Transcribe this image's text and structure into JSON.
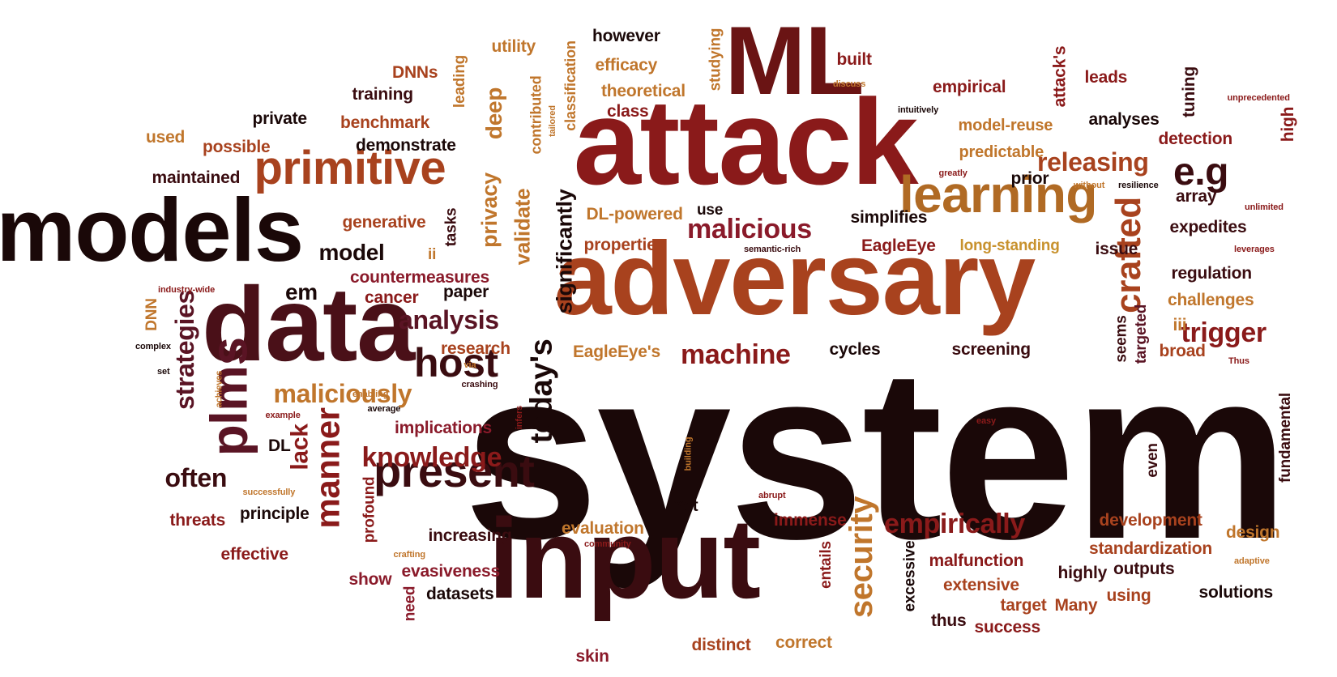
{
  "palette": {
    "background": "#ffffff",
    "darkest": "#1a0808",
    "maroon": "#3a0c10",
    "plum": "#5a1424",
    "crimson": "#8a1a1a",
    "rust": "#a8421e",
    "amber": "#c0762c",
    "gold": "#c8922e"
  },
  "words": [
    {
      "text": "system",
      "color": "#1a0808"
    },
    {
      "text": "adversary",
      "color": "#a8421e"
    },
    {
      "text": "attack",
      "color": "#8a1a1a"
    },
    {
      "text": "input",
      "color": "#3a0c10"
    },
    {
      "text": "data",
      "color": "#4a1018"
    },
    {
      "text": "models",
      "color": "#1a0808"
    },
    {
      "text": "ML",
      "color": "#6a1414"
    },
    {
      "text": "learning",
      "color": "#b06a24"
    },
    {
      "text": "primitive",
      "color": "#a8421e"
    },
    {
      "text": "present",
      "color": "#3a0c10"
    },
    {
      "text": "plms",
      "color": "#5a1424"
    },
    {
      "text": "host",
      "color": "#3a0c10"
    },
    {
      "text": "malicious",
      "color": "#8a1a2a"
    },
    {
      "text": "crafted",
      "color": "#a8421e"
    },
    {
      "text": "security",
      "color": "#c0762c"
    },
    {
      "text": "today's",
      "color": "#1a0808"
    },
    {
      "text": "manner",
      "color": "#8a1a1a"
    },
    {
      "text": "strategies",
      "color": "#5a1424"
    },
    {
      "text": "releasing",
      "color": "#a8421e"
    },
    {
      "text": "e.g",
      "color": "#3a0c10"
    },
    {
      "text": "machine",
      "color": "#8a1a1a"
    },
    {
      "text": "empirically",
      "color": "#8a1a1a"
    },
    {
      "text": "knowledge",
      "color": "#8a1a1a"
    },
    {
      "text": "maliciously",
      "color": "#c0762c"
    },
    {
      "text": "trigger",
      "color": "#8a1a1a"
    },
    {
      "text": "analysis",
      "color": "#5a1424"
    },
    {
      "text": "significantly",
      "color": "#1a0808"
    },
    {
      "text": "often",
      "color": "#3a0c10"
    },
    {
      "text": "lack",
      "color": "#8a1a1a"
    },
    {
      "text": "privacy",
      "color": "#c0762c"
    },
    {
      "text": "validate",
      "color": "#c0762c"
    },
    {
      "text": "deep",
      "color": "#c0762c"
    },
    {
      "text": "model",
      "color": "#1a0808"
    },
    {
      "text": "em",
      "color": "#1a0808"
    },
    {
      "text": "however",
      "color": "#1a0808"
    },
    {
      "text": "efficacy",
      "color": "#c0762c"
    },
    {
      "text": "theoretical",
      "color": "#c0762c"
    },
    {
      "text": "class",
      "color": "#8a1a1a"
    },
    {
      "text": "studying",
      "color": "#c0762c"
    },
    {
      "text": "classification",
      "color": "#c0762c"
    },
    {
      "text": "contributed",
      "color": "#c0762c"
    },
    {
      "text": "built",
      "color": "#8a1a1a"
    },
    {
      "text": "discuss",
      "color": "#c0762c"
    },
    {
      "text": "empirical",
      "color": "#8a1a1a"
    },
    {
      "text": "intuitively",
      "color": "#1a0808"
    },
    {
      "text": "attack's",
      "color": "#8a1a1a"
    },
    {
      "text": "leads",
      "color": "#8a1a1a"
    },
    {
      "text": "analyses",
      "color": "#1a0808"
    },
    {
      "text": "tuning",
      "color": "#3a0c10"
    },
    {
      "text": "unprecedented",
      "color": "#8a1a1a"
    },
    {
      "text": "high",
      "color": "#8a1a1a"
    },
    {
      "text": "detection",
      "color": "#8a1a1a"
    },
    {
      "text": "model-reuse",
      "color": "#c0762c"
    },
    {
      "text": "predictable",
      "color": "#c0762c"
    },
    {
      "text": "prior",
      "color": "#1a0808"
    },
    {
      "text": "greatly",
      "color": "#8a1a1a"
    },
    {
      "text": "without",
      "color": "#c0762c"
    },
    {
      "text": "resilience",
      "color": "#1a0808"
    },
    {
      "text": "array",
      "color": "#3a0c10"
    },
    {
      "text": "unlimited",
      "color": "#8a1a1a"
    },
    {
      "text": "expedites",
      "color": "#3a0c10"
    },
    {
      "text": "leverages",
      "color": "#8a1a1a"
    },
    {
      "text": "regulation",
      "color": "#3a0c10"
    },
    {
      "text": "challenges",
      "color": "#c0762c"
    },
    {
      "text": "iii",
      "color": "#c0762c"
    },
    {
      "text": "broad",
      "color": "#a8421e"
    },
    {
      "text": "Thus",
      "color": "#8a1a1a"
    },
    {
      "text": "seems",
      "color": "#3a0c10"
    },
    {
      "text": "targeted",
      "color": "#5a1424"
    },
    {
      "text": "fundamental",
      "color": "#3a0c10"
    },
    {
      "text": "even",
      "color": "#3a0c10"
    },
    {
      "text": "issue",
      "color": "#3a0c10"
    },
    {
      "text": "long-standing",
      "color": "#c8922e"
    },
    {
      "text": "EagleEye",
      "color": "#8a1a1a"
    },
    {
      "text": "simplifies",
      "color": "#1a0808"
    },
    {
      "text": "semantic-rich",
      "color": "#3a0c10"
    },
    {
      "text": "use",
      "color": "#1a0808"
    },
    {
      "text": "DL-powered",
      "color": "#c0762c"
    },
    {
      "text": "properties",
      "color": "#a8421e"
    },
    {
      "text": "cycles",
      "color": "#1a0808"
    },
    {
      "text": "screening",
      "color": "#3a0c10"
    },
    {
      "text": "EagleEye's",
      "color": "#c0762c"
    },
    {
      "text": "utility",
      "color": "#c0762c"
    },
    {
      "text": "DNNs",
      "color": "#a8421e"
    },
    {
      "text": "leading",
      "color": "#c0762c"
    },
    {
      "text": "training",
      "color": "#3a0c10"
    },
    {
      "text": "private",
      "color": "#1a0808"
    },
    {
      "text": "benchmark",
      "color": "#a8421e"
    },
    {
      "text": "demonstrate",
      "color": "#1a0808"
    },
    {
      "text": "used",
      "color": "#c0762c"
    },
    {
      "text": "possible",
      "color": "#a8421e"
    },
    {
      "text": "tailored",
      "color": "#c0762c"
    },
    {
      "text": "maintained",
      "color": "#3a0c10"
    },
    {
      "text": "generative",
      "color": "#a8421e"
    },
    {
      "text": "tasks",
      "color": "#3a0c10"
    },
    {
      "text": "ii",
      "color": "#c0762c"
    },
    {
      "text": "countermeasures",
      "color": "#8a1a2a"
    },
    {
      "text": "cancer",
      "color": "#8a1a1a"
    },
    {
      "text": "paper",
      "color": "#1a0808"
    },
    {
      "text": "research",
      "color": "#a8421e"
    },
    {
      "text": "via",
      "color": "#c0762c"
    },
    {
      "text": "crashing",
      "color": "#3a0c10"
    },
    {
      "text": "enabling",
      "color": "#c0762c"
    },
    {
      "text": "average",
      "color": "#1a0808"
    },
    {
      "text": "implications",
      "color": "#8a1a2a"
    },
    {
      "text": "infers",
      "color": "#8a1a1a"
    },
    {
      "text": "DL",
      "color": "#1a0808"
    },
    {
      "text": "industry-wide",
      "color": "#8a1a1a"
    },
    {
      "text": "DNN",
      "color": "#c0762c"
    },
    {
      "text": "complex",
      "color": "#1a0808"
    },
    {
      "text": "set",
      "color": "#1a0808"
    },
    {
      "text": "achieves",
      "color": "#c0762c"
    },
    {
      "text": "example",
      "color": "#8a1a1a"
    },
    {
      "text": "successfully",
      "color": "#c0762c"
    },
    {
      "text": "threats",
      "color": "#8a1a1a"
    },
    {
      "text": "principle",
      "color": "#1a0808"
    },
    {
      "text": "profound",
      "color": "#8a1a1a"
    },
    {
      "text": "effective",
      "color": "#8a1a1a"
    },
    {
      "text": "increasing",
      "color": "#3a0c10"
    },
    {
      "text": "evaluation",
      "color": "#c0762c"
    },
    {
      "text": "community",
      "color": "#8a1a1a"
    },
    {
      "text": "crafting",
      "color": "#c0762c"
    },
    {
      "text": "show",
      "color": "#8a1a2a"
    },
    {
      "text": "evasiveness",
      "color": "#8a1a2a"
    },
    {
      "text": "datasets",
      "color": "#1a0808"
    },
    {
      "text": "need",
      "color": "#8a1a2a"
    },
    {
      "text": "skin",
      "color": "#8a1a2a"
    },
    {
      "text": "Yet",
      "color": "#1a0808"
    },
    {
      "text": "immense",
      "color": "#8a1a1a"
    },
    {
      "text": "entails",
      "color": "#8a1a1a"
    },
    {
      "text": "abrupt",
      "color": "#8a1a1a"
    },
    {
      "text": "building",
      "color": "#c0762c"
    },
    {
      "text": "distinct",
      "color": "#a8421e"
    },
    {
      "text": "correct",
      "color": "#c0762c"
    },
    {
      "text": "excessive",
      "color": "#1a0808"
    },
    {
      "text": "malfunction",
      "color": "#8a1a1a"
    },
    {
      "text": "extensive",
      "color": "#a8421e"
    },
    {
      "text": "thus",
      "color": "#3a0c10"
    },
    {
      "text": "target",
      "color": "#a8421e"
    },
    {
      "text": "success",
      "color": "#8a1a1a"
    },
    {
      "text": "Many",
      "color": "#a8421e"
    },
    {
      "text": "using",
      "color": "#a8421e"
    },
    {
      "text": "highly",
      "color": "#3a0c10"
    },
    {
      "text": "outputs",
      "color": "#3a0c10"
    },
    {
      "text": "solutions",
      "color": "#1a0808"
    },
    {
      "text": "standardization",
      "color": "#a8421e"
    },
    {
      "text": "development",
      "color": "#a8421e"
    },
    {
      "text": "design",
      "color": "#c0762c"
    },
    {
      "text": "adaptive",
      "color": "#c0762c"
    },
    {
      "text": "easy",
      "color": "#8a1a1a"
    }
  ]
}
